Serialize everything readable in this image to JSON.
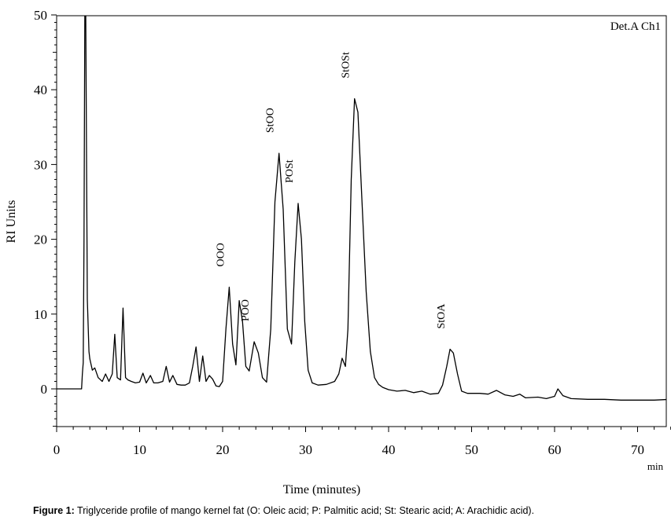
{
  "caption": {
    "label": "Figure 1:",
    "text": "Triglyceride profile of mango kernel fat (O: Oleic acid; P: Palmitic acid; St: Stearic acid; A: Arachidic acid)."
  },
  "chart_data": {
    "type": "line",
    "title": "Det.A Ch1",
    "xlabel": "Time (minutes)",
    "ylabel": "RI Units",
    "x_unit": "min",
    "xlim": [
      0,
      74
    ],
    "ylim": [
      -5,
      50
    ],
    "x_ticks": [
      0,
      10,
      20,
      30,
      40,
      50,
      60,
      70
    ],
    "y_ticks": [
      0,
      10,
      20,
      30,
      40,
      50
    ],
    "grid": false,
    "peak_labels": [
      {
        "label": "OOO",
        "x": 20.8,
        "y": 13.6
      },
      {
        "label": "POO",
        "x": 23.8,
        "y": 6.3
      },
      {
        "label": "StOO",
        "x": 26.8,
        "y": 31.5
      },
      {
        "label": "POSt",
        "x": 29.1,
        "y": 24.8
      },
      {
        "label": "StOSt",
        "x": 35.9,
        "y": 38.8
      },
      {
        "label": "StOA",
        "x": 47.4,
        "y": 5.3
      }
    ],
    "series": [
      {
        "x": [
          0,
          3.0,
          3.1,
          3.2,
          3.3,
          3.4,
          3.5,
          3.7,
          3.9,
          4.0,
          4.3,
          4.6,
          5.0,
          5.5,
          5.9,
          6.3,
          6.7,
          7.0,
          7.3,
          7.7,
          8.0,
          8.3,
          8.6,
          9.0,
          9.5,
          10.0,
          10.4,
          10.8,
          11.3,
          11.7,
          12.2,
          12.8,
          13.2,
          13.6,
          14.0,
          14.5,
          15.0,
          15.5,
          16.0,
          16.4,
          16.8,
          17.2,
          17.6,
          18.0,
          18.4,
          18.8,
          19.2,
          19.6,
          20.0,
          20.4,
          20.8,
          21.2,
          21.6,
          22.0,
          22.4,
          22.8,
          23.2,
          23.8,
          24.3,
          24.8,
          25.3,
          25.8,
          26.3,
          26.8,
          27.3,
          27.8,
          28.3,
          28.7,
          29.1,
          29.5,
          29.9,
          30.3,
          30.8,
          31.5,
          32.5,
          33.5,
          34.0,
          34.4,
          34.8,
          35.1,
          35.5,
          35.9,
          36.3,
          36.8,
          37.3,
          37.8,
          38.3,
          38.8,
          39.3,
          40.0,
          41.0,
          42.0,
          43.0,
          44.0,
          45.0,
          46.0,
          46.5,
          47.0,
          47.4,
          47.8,
          48.3,
          48.8,
          49.5,
          51.0,
          52.0,
          53.0,
          54.0,
          55.0,
          55.8,
          56.5,
          58.0,
          59.0,
          60.0,
          60.4,
          61.0,
          62.0,
          64.0,
          66.0,
          68.0,
          70.0,
          72.0,
          74.0
        ],
        "y": [
          0,
          0,
          2.0,
          3.5,
          20.0,
          52.0,
          52.0,
          12.0,
          5.0,
          4.0,
          2.5,
          2.8,
          1.5,
          1.0,
          2.0,
          1.0,
          2.0,
          7.3,
          1.5,
          1.2,
          10.8,
          1.5,
          1.2,
          1.0,
          0.8,
          0.9,
          2.1,
          0.8,
          1.8,
          0.8,
          0.8,
          1.0,
          3.0,
          0.9,
          1.8,
          0.6,
          0.5,
          0.5,
          0.8,
          3.0,
          5.6,
          1.0,
          4.4,
          1.0,
          1.8,
          1.3,
          0.4,
          0.3,
          1.0,
          8.0,
          13.6,
          6.0,
          3.2,
          11.8,
          9.0,
          3.0,
          2.4,
          6.3,
          4.8,
          1.5,
          0.9,
          8.0,
          25.0,
          31.5,
          24.0,
          8.0,
          6.0,
          17.0,
          24.8,
          20.0,
          9.0,
          2.5,
          0.8,
          0.5,
          0.6,
          1.0,
          2.0,
          4.1,
          3.0,
          8.0,
          28.0,
          38.8,
          37.0,
          25.0,
          13.0,
          5.0,
          1.5,
          0.6,
          0.2,
          -0.1,
          -0.3,
          -0.2,
          -0.5,
          -0.3,
          -0.7,
          -0.6,
          0.5,
          3.0,
          5.3,
          4.8,
          2.0,
          -0.3,
          -0.6,
          -0.6,
          -0.7,
          -0.2,
          -0.8,
          -1.0,
          -0.7,
          -1.2,
          -1.1,
          -1.3,
          -1.0,
          0.0,
          -0.9,
          -1.3,
          -1.4,
          -1.4,
          -1.5,
          -1.5,
          -1.5,
          -1.4
        ]
      }
    ]
  }
}
